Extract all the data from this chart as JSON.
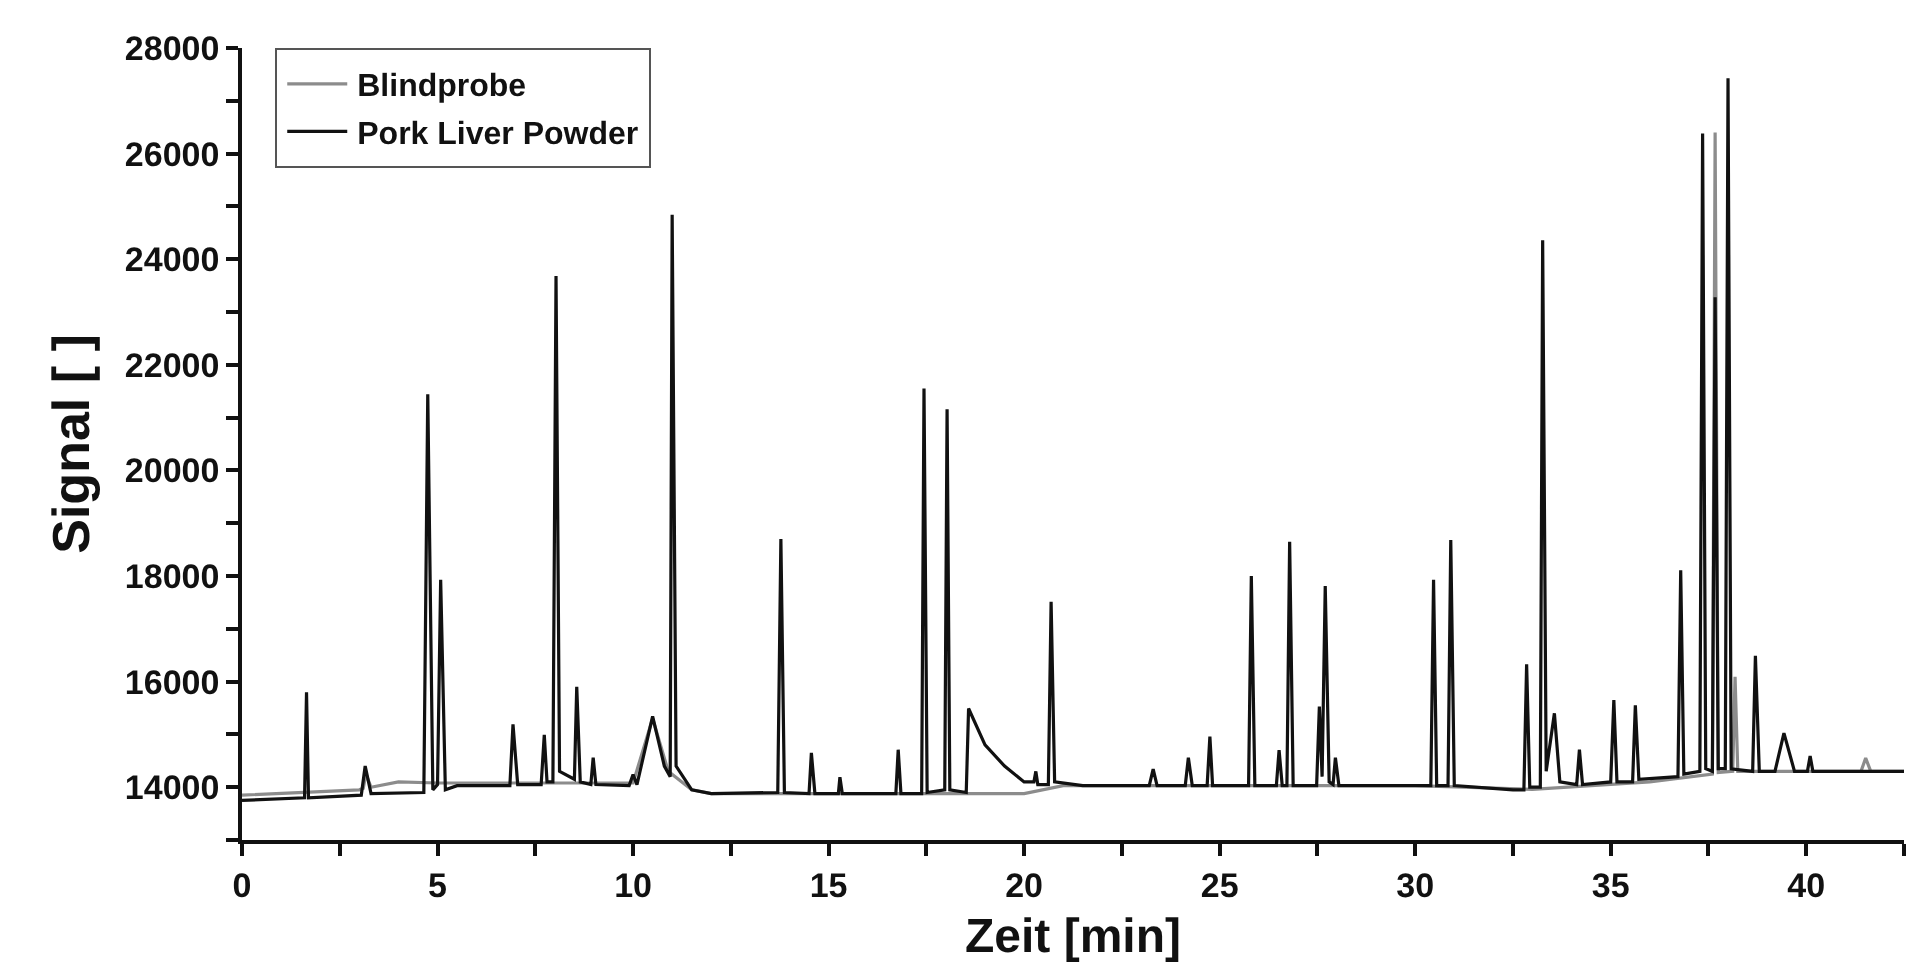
{
  "chart_data": {
    "type": "line",
    "xlabel": "Zeit [min]",
    "ylabel": "Signal [ ]",
    "xlim": [
      0,
      42.5
    ],
    "ylim": [
      13000,
      28000
    ],
    "xticks": [
      0,
      {
        "value": 2.5,
        "label": null
      },
      5,
      {
        "value": 7.5,
        "label": null
      },
      10,
      {
        "value": 12.5,
        "label": null
      },
      15,
      {
        "value": 17.5,
        "label": null
      },
      20,
      {
        "value": 22.5,
        "label": null
      },
      25,
      {
        "value": 27.5,
        "label": null
      },
      30,
      {
        "value": 32.5,
        "label": null
      },
      35,
      {
        "value": 37.5,
        "label": null
      },
      40,
      {
        "value": 42.5,
        "label": null
      }
    ],
    "yticks": [
      {
        "value": 13000,
        "label": null
      },
      14000,
      {
        "value": 15000,
        "label": null
      },
      16000,
      {
        "value": 17000,
        "label": null
      },
      18000,
      {
        "value": 19000,
        "label": null
      },
      20000,
      {
        "value": 21000,
        "label": null
      },
      22000,
      {
        "value": 23000,
        "label": null
      },
      24000,
      {
        "value": 25000,
        "label": null
      },
      26000,
      {
        "value": 27000,
        "label": null
      },
      28000
    ],
    "grid": false,
    "legend": "top left",
    "series": [
      {
        "name": "Blindprobe",
        "color": "#8c8c8c",
        "x": [
          0,
          3.0,
          3.1,
          3.17,
          3.3,
          4.0,
          5.0,
          10.0,
          10.5,
          10.9,
          11.5,
          12.0,
          20.0,
          21.0,
          30.0,
          33.0,
          36.0,
          37.6,
          37.67,
          37.75,
          38.12,
          38.18,
          38.25,
          41.4,
          41.52,
          41.65,
          42.5
        ],
        "values": [
          13850,
          13950,
          13980,
          14250,
          14000,
          14100,
          14080,
          14080,
          15300,
          14300,
          13950,
          13880,
          13880,
          14030,
          14030,
          13960,
          14100,
          14250,
          26400,
          14280,
          14300,
          16090,
          14300,
          14300,
          14550,
          14300,
          14300
        ]
      },
      {
        "name": "Pork Liver Powder",
        "color": "#111111",
        "x": [
          0,
          1.6,
          1.65,
          1.7,
          3.05,
          3.15,
          3.3,
          4.65,
          4.75,
          4.88,
          5.0,
          5.08,
          5.2,
          5.5,
          6.85,
          6.93,
          7.05,
          7.65,
          7.73,
          7.8,
          7.95,
          8.03,
          8.12,
          8.5,
          8.56,
          8.65,
          8.92,
          8.98,
          9.05,
          9.9,
          10.0,
          10.1,
          10.5,
          10.8,
          10.95,
          11.0,
          11.1,
          11.5,
          12.0,
          13.7,
          13.78,
          13.87,
          14.5,
          14.56,
          14.65,
          15.25,
          15.29,
          15.35,
          16.72,
          16.78,
          16.85,
          17.38,
          17.44,
          17.52,
          17.97,
          18.03,
          18.1,
          18.52,
          18.58,
          19.0,
          19.5,
          20.0,
          20.25,
          20.3,
          20.35,
          20.62,
          20.69,
          20.78,
          21.5,
          23.2,
          23.3,
          23.4,
          24.12,
          24.2,
          24.3,
          24.68,
          24.75,
          24.82,
          25.74,
          25.81,
          25.9,
          26.45,
          26.52,
          26.6,
          26.72,
          26.79,
          26.88,
          27.48,
          27.55,
          27.62,
          27.7,
          27.8,
          27.9,
          27.96,
          28.05,
          30.4,
          30.47,
          30.55,
          30.84,
          30.91,
          31.0,
          32.5,
          32.78,
          32.85,
          32.93,
          33.2,
          33.26,
          33.35,
          33.56,
          33.7,
          34.13,
          34.2,
          34.28,
          35.0,
          35.08,
          35.16,
          35.56,
          35.63,
          35.72,
          36.72,
          36.79,
          36.87,
          37.28,
          37.35,
          37.43,
          37.6,
          37.67,
          37.75,
          37.93,
          38.0,
          38.08,
          38.63,
          38.7,
          38.8,
          39.2,
          39.43,
          39.7,
          40.03,
          40.1,
          40.17,
          42.5
        ],
        "values": [
          13750,
          13800,
          15800,
          13800,
          13850,
          14400,
          13880,
          13900,
          21440,
          13950,
          14050,
          17930,
          13950,
          14030,
          14030,
          15190,
          14050,
          14050,
          14990,
          14100,
          14100,
          23680,
          14300,
          14150,
          15900,
          14100,
          14050,
          14560,
          14050,
          14030,
          14240,
          14050,
          15340,
          14400,
          14200,
          24840,
          14400,
          13950,
          13880,
          13900,
          18700,
          13900,
          13880,
          14650,
          13880,
          13880,
          14190,
          13880,
          13880,
          14710,
          13880,
          13880,
          21550,
          13900,
          13950,
          21160,
          13950,
          13900,
          15490,
          14800,
          14400,
          14100,
          14100,
          14300,
          14050,
          14050,
          17510,
          14100,
          14030,
          14030,
          14340,
          14030,
          14030,
          14560,
          14030,
          14030,
          14960,
          14030,
          14030,
          18000,
          14030,
          14030,
          14700,
          14030,
          14030,
          18650,
          14030,
          14030,
          15525,
          14200,
          17810,
          14100,
          14050,
          14560,
          14030,
          14030,
          17930,
          14030,
          14030,
          18680,
          14030,
          13950,
          13950,
          16330,
          14000,
          14000,
          24360,
          14300,
          15400,
          14100,
          14050,
          14710,
          14050,
          14100,
          15650,
          14100,
          14100,
          15550,
          14150,
          14200,
          18110,
          14250,
          14300,
          26380,
          14350,
          14300,
          23280,
          14350,
          14350,
          27425,
          14350,
          14300,
          16490,
          14300,
          14300,
          15025,
          14300,
          14300,
          14590,
          14300,
          14300
        ]
      }
    ]
  }
}
